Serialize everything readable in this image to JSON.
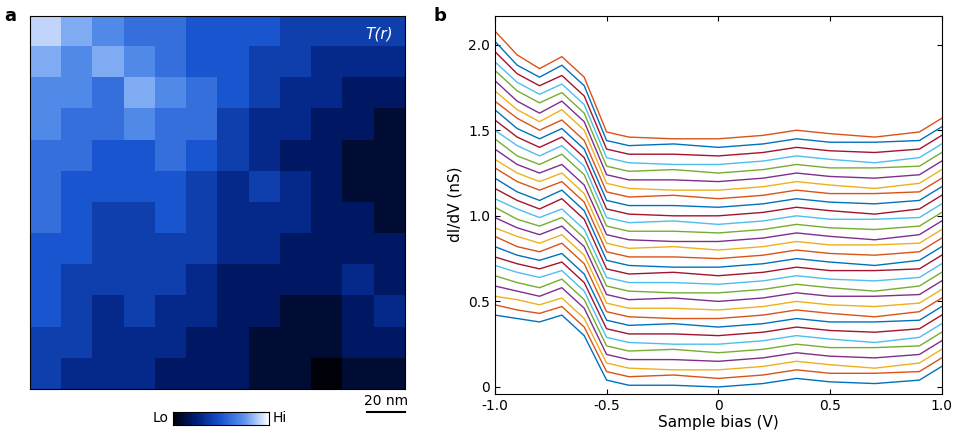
{
  "chart_data": [
    {
      "type": "heatmap",
      "panel_label": "a",
      "title": "T(r)",
      "xlim": [
        0,
        200
      ],
      "ylim": [
        0,
        200
      ],
      "tick_labels": false,
      "cells": [
        [
          9,
          8,
          7,
          6,
          6,
          5,
          5,
          5,
          4,
          4,
          4,
          4
        ],
        [
          8,
          7,
          8,
          7,
          6,
          5,
          5,
          4,
          4,
          3,
          3,
          3
        ],
        [
          7,
          7,
          6,
          8,
          7,
          6,
          5,
          4,
          3,
          3,
          2,
          2
        ],
        [
          7,
          6,
          6,
          7,
          6,
          6,
          4,
          3,
          3,
          2,
          2,
          1
        ],
        [
          6,
          6,
          5,
          5,
          6,
          5,
          4,
          3,
          2,
          2,
          1,
          1
        ],
        [
          6,
          5,
          5,
          5,
          5,
          4,
          3,
          4,
          3,
          2,
          1,
          1
        ],
        [
          6,
          5,
          4,
          4,
          5,
          4,
          3,
          3,
          3,
          2,
          2,
          1
        ],
        [
          5,
          5,
          4,
          4,
          4,
          4,
          3,
          3,
          2,
          2,
          2,
          2
        ],
        [
          5,
          4,
          4,
          4,
          4,
          3,
          2,
          2,
          2,
          2,
          3,
          2
        ],
        [
          5,
          4,
          3,
          4,
          3,
          3,
          2,
          2,
          1,
          1,
          2,
          3
        ],
        [
          4,
          4,
          3,
          3,
          3,
          2,
          2,
          1,
          1,
          1,
          2,
          2
        ],
        [
          4,
          3,
          3,
          3,
          2,
          2,
          2,
          1,
          1,
          0,
          1,
          1
        ]
      ],
      "colorbar_range": [
        0,
        10
      ],
      "colorbar_ticks": [
        {
          "value": 0,
          "label": "Lo"
        },
        {
          "value": 10,
          "label": "Hi"
        }
      ],
      "scale_bar": {
        "length": 20,
        "label": "20 nm"
      }
    },
    {
      "type": "line",
      "panel_label": "b",
      "x_label": "Sample bias (V)",
      "y_label": "dI/dV (nS)",
      "xlim": [
        -1.0,
        1.0
      ],
      "ylim": [
        -0.04,
        2.17
      ],
      "xticks": [
        -1.0,
        -0.5,
        0,
        0.5,
        1.0
      ],
      "yticks": [
        0,
        0.5,
        1.0,
        1.5,
        2.0
      ],
      "x": [
        -1.0,
        -0.9,
        -0.8,
        -0.7,
        -0.6,
        -0.5,
        -0.4,
        -0.2,
        0.0,
        0.2,
        0.35,
        0.5,
        0.7,
        0.9,
        1.0
      ],
      "series": [
        {
          "color": "#0072BD",
          "values": [
            0.42,
            0.4,
            0.38,
            0.42,
            0.3,
            0.04,
            0.01,
            0.01,
            0.0,
            0.02,
            0.05,
            0.03,
            0.02,
            0.04,
            0.12
          ]
        },
        {
          "color": "#D95319",
          "values": [
            0.48,
            0.45,
            0.43,
            0.47,
            0.35,
            0.09,
            0.06,
            0.07,
            0.05,
            0.07,
            0.1,
            0.08,
            0.08,
            0.09,
            0.17
          ]
        },
        {
          "color": "#EDB120",
          "values": [
            0.53,
            0.51,
            0.48,
            0.52,
            0.4,
            0.14,
            0.11,
            0.1,
            0.1,
            0.12,
            0.15,
            0.13,
            0.11,
            0.14,
            0.22
          ]
        },
        {
          "color": "#7E2F8E",
          "values": [
            0.59,
            0.56,
            0.53,
            0.58,
            0.46,
            0.19,
            0.16,
            0.16,
            0.15,
            0.17,
            0.2,
            0.18,
            0.17,
            0.19,
            0.27
          ]
        },
        {
          "color": "#77AC30",
          "values": [
            0.65,
            0.61,
            0.58,
            0.63,
            0.51,
            0.24,
            0.21,
            0.22,
            0.2,
            0.22,
            0.25,
            0.23,
            0.23,
            0.24,
            0.32
          ]
        },
        {
          "color": "#4DBEEE",
          "values": [
            0.71,
            0.67,
            0.64,
            0.68,
            0.56,
            0.29,
            0.26,
            0.25,
            0.25,
            0.27,
            0.3,
            0.28,
            0.26,
            0.29,
            0.37
          ]
        },
        {
          "color": "#A2142F",
          "values": [
            0.76,
            0.72,
            0.69,
            0.73,
            0.61,
            0.34,
            0.31,
            0.31,
            0.3,
            0.32,
            0.35,
            0.33,
            0.32,
            0.34,
            0.42
          ]
        },
        {
          "color": "#0072BD",
          "values": [
            0.82,
            0.77,
            0.74,
            0.78,
            0.66,
            0.39,
            0.36,
            0.37,
            0.35,
            0.37,
            0.4,
            0.38,
            0.38,
            0.39,
            0.47
          ]
        },
        {
          "color": "#D95319",
          "values": [
            0.88,
            0.82,
            0.79,
            0.84,
            0.72,
            0.44,
            0.41,
            0.4,
            0.4,
            0.42,
            0.45,
            0.43,
            0.41,
            0.44,
            0.52
          ]
        },
        {
          "color": "#EDB120",
          "values": [
            0.93,
            0.88,
            0.84,
            0.89,
            0.77,
            0.49,
            0.46,
            0.46,
            0.45,
            0.47,
            0.5,
            0.48,
            0.47,
            0.49,
            0.57
          ]
        },
        {
          "color": "#7E2F8E",
          "values": [
            0.99,
            0.93,
            0.89,
            0.94,
            0.82,
            0.54,
            0.51,
            0.52,
            0.5,
            0.52,
            0.55,
            0.53,
            0.53,
            0.54,
            0.62
          ]
        },
        {
          "color": "#77AC30",
          "values": [
            1.05,
            0.98,
            0.94,
            0.99,
            0.87,
            0.59,
            0.56,
            0.55,
            0.55,
            0.57,
            0.6,
            0.58,
            0.56,
            0.59,
            0.67
          ]
        },
        {
          "color": "#4DBEEE",
          "values": [
            1.1,
            1.04,
            0.99,
            1.04,
            0.92,
            0.64,
            0.61,
            0.61,
            0.6,
            0.62,
            0.65,
            0.63,
            0.62,
            0.64,
            0.72
          ]
        },
        {
          "color": "#A2142F",
          "values": [
            1.16,
            1.09,
            1.04,
            1.1,
            0.98,
            0.69,
            0.66,
            0.67,
            0.65,
            0.67,
            0.7,
            0.68,
            0.68,
            0.69,
            0.77
          ]
        },
        {
          "color": "#0072BD",
          "values": [
            1.22,
            1.14,
            1.09,
            1.15,
            1.03,
            0.74,
            0.71,
            0.7,
            0.7,
            0.72,
            0.75,
            0.73,
            0.71,
            0.74,
            0.82
          ]
        },
        {
          "color": "#D95319",
          "values": [
            1.28,
            1.2,
            1.15,
            1.2,
            1.08,
            0.79,
            0.76,
            0.76,
            0.75,
            0.77,
            0.8,
            0.78,
            0.77,
            0.79,
            0.87
          ]
        },
        {
          "color": "#EDB120",
          "values": [
            1.33,
            1.25,
            1.2,
            1.25,
            1.13,
            0.84,
            0.81,
            0.82,
            0.8,
            0.82,
            0.85,
            0.83,
            0.83,
            0.84,
            0.92
          ]
        },
        {
          "color": "#7E2F8E",
          "values": [
            1.39,
            1.3,
            1.25,
            1.3,
            1.18,
            0.89,
            0.86,
            0.85,
            0.85,
            0.87,
            0.9,
            0.88,
            0.86,
            0.89,
            0.97
          ]
        },
        {
          "color": "#77AC30",
          "values": [
            1.45,
            1.35,
            1.3,
            1.36,
            1.24,
            0.94,
            0.91,
            0.91,
            0.9,
            0.92,
            0.95,
            0.93,
            0.92,
            0.94,
            1.02
          ]
        },
        {
          "color": "#4DBEEE",
          "values": [
            1.5,
            1.41,
            1.35,
            1.41,
            1.29,
            0.99,
            0.96,
            0.97,
            0.95,
            0.97,
            1.0,
            0.98,
            0.98,
            0.99,
            1.07
          ]
        },
        {
          "color": "#A2142F",
          "values": [
            1.56,
            1.46,
            1.4,
            1.46,
            1.34,
            1.04,
            1.01,
            1.0,
            1.0,
            1.02,
            1.05,
            1.03,
            1.01,
            1.04,
            1.12
          ]
        },
        {
          "color": "#0072BD",
          "values": [
            1.62,
            1.51,
            1.45,
            1.51,
            1.39,
            1.09,
            1.06,
            1.06,
            1.05,
            1.07,
            1.1,
            1.08,
            1.07,
            1.09,
            1.17
          ]
        },
        {
          "color": "#D95319",
          "values": [
            1.67,
            1.57,
            1.5,
            1.56,
            1.44,
            1.14,
            1.11,
            1.12,
            1.1,
            1.12,
            1.15,
            1.13,
            1.13,
            1.14,
            1.22
          ]
        },
        {
          "color": "#EDB120",
          "values": [
            1.73,
            1.62,
            1.55,
            1.62,
            1.5,
            1.19,
            1.16,
            1.15,
            1.15,
            1.17,
            1.2,
            1.18,
            1.16,
            1.19,
            1.27
          ]
        },
        {
          "color": "#7E2F8E",
          "values": [
            1.79,
            1.67,
            1.6,
            1.67,
            1.55,
            1.24,
            1.21,
            1.21,
            1.2,
            1.22,
            1.25,
            1.23,
            1.22,
            1.24,
            1.32
          ]
        },
        {
          "color": "#77AC30",
          "values": [
            1.85,
            1.73,
            1.66,
            1.72,
            1.6,
            1.29,
            1.26,
            1.27,
            1.25,
            1.27,
            1.3,
            1.28,
            1.28,
            1.29,
            1.37
          ]
        },
        {
          "color": "#4DBEEE",
          "values": [
            1.9,
            1.78,
            1.71,
            1.77,
            1.65,
            1.34,
            1.31,
            1.3,
            1.3,
            1.32,
            1.35,
            1.33,
            1.31,
            1.34,
            1.42
          ]
        },
        {
          "color": "#A2142F",
          "values": [
            1.96,
            1.83,
            1.76,
            1.82,
            1.7,
            1.39,
            1.36,
            1.36,
            1.35,
            1.37,
            1.4,
            1.38,
            1.37,
            1.39,
            1.47
          ]
        },
        {
          "color": "#0072BD",
          "values": [
            2.02,
            1.88,
            1.81,
            1.88,
            1.76,
            1.44,
            1.41,
            1.42,
            1.4,
            1.42,
            1.45,
            1.43,
            1.43,
            1.44,
            1.52
          ]
        },
        {
          "color": "#D95319",
          "values": [
            2.08,
            1.94,
            1.86,
            1.93,
            1.81,
            1.49,
            1.46,
            1.45,
            1.45,
            1.47,
            1.5,
            1.48,
            1.46,
            1.49,
            1.57
          ]
        }
      ]
    }
  ]
}
